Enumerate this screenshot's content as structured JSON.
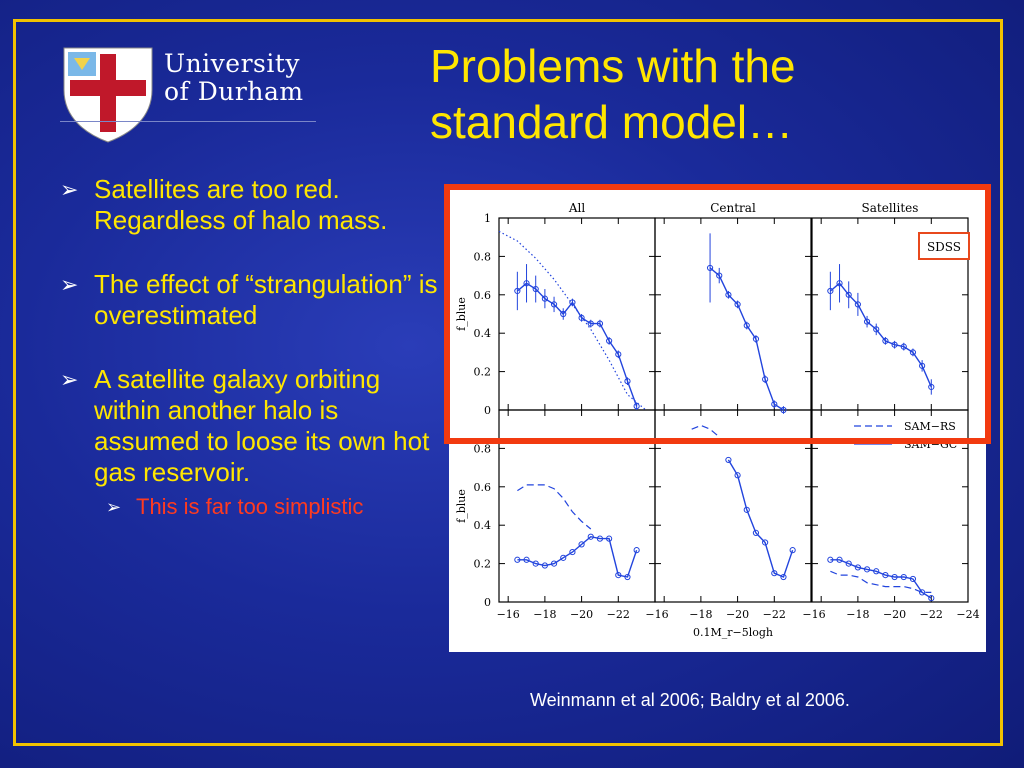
{
  "logo": {
    "line1": "University",
    "line2": "of Durham",
    "colors": {
      "shield": "#ffffff",
      "cross": "#c0182a",
      "quarter": "#7ab8e8"
    }
  },
  "title": {
    "line1": "Problems with the",
    "line2": "standard model…"
  },
  "bullets": [
    {
      "marker": "➢",
      "text": "Satellites are too red. Regardless of halo mass."
    },
    {
      "marker": "➢",
      "text": "The effect of “strangulation” is overestimated"
    },
    {
      "marker": "➢",
      "text": "A satellite galaxy orbiting within another halo is assumed to loose its own hot gas reservoir."
    }
  ],
  "sub_bullet": {
    "marker": "➢",
    "text": "This is far too simplistic"
  },
  "caption": "Weinmann et al 2006; Baldry et al 2006.",
  "colors": {
    "title": "#ffe600",
    "bullet_text": "#ffe600",
    "sub_bullet_text": "#ff3b1f",
    "frame": "#f2c200",
    "highlight": "#f23a10",
    "data_line": "#2244dd"
  },
  "chart_data": {
    "type": "line",
    "panel_titles": [
      "All",
      "Central",
      "Satellites"
    ],
    "ylabel": "f_blue",
    "xlabel": "0.1M_r−5logh",
    "x_ticks": [
      "−16",
      "−18",
      "−20",
      "−22",
      "−24"
    ],
    "y_ticks": [
      "0",
      "0.2",
      "0.4",
      "0.6",
      "0.8",
      "1"
    ],
    "xlim": [
      -15.5,
      -24
    ],
    "ylim": [
      0,
      1
    ],
    "top_legend": "SDSS",
    "bottom_legend": [
      "SAM−RS",
      "SAM−GC"
    ],
    "panels": [
      {
        "row": "top",
        "column": "All",
        "series": [
          {
            "style": "points+errorbars",
            "x": [
              -16.5,
              -17,
              -17.5,
              -18,
              -18.5,
              -19,
              -19.5,
              -20,
              -20.5,
              -21,
              -21.5,
              -22,
              -22.5,
              -23
            ],
            "y": [
              0.62,
              0.66,
              0.63,
              0.58,
              0.55,
              0.5,
              0.56,
              0.48,
              0.45,
              0.45,
              0.36,
              0.29,
              0.15,
              0.02
            ],
            "err": [
              0.1,
              0.1,
              0.07,
              0.05,
              0.04,
              0.03,
              0.02,
              0.02,
              0.02,
              0.02,
              0.02,
              0.02,
              0.02,
              0.02
            ]
          },
          {
            "style": "dotted",
            "x": [
              -15.5,
              -16.5,
              -17.5,
              -18.5,
              -19.5,
              -20.5,
              -21.5,
              -22.5,
              -23.5
            ],
            "y": [
              0.93,
              0.88,
              0.79,
              0.68,
              0.55,
              0.42,
              0.26,
              0.08,
              0.0
            ]
          }
        ]
      },
      {
        "row": "top",
        "column": "Central",
        "series": [
          {
            "style": "points+errorbars",
            "x": [
              -18.5,
              -19,
              -19.5,
              -20,
              -20.5,
              -21,
              -21.5,
              -22,
              -22.5
            ],
            "y": [
              0.74,
              0.7,
              0.6,
              0.55,
              0.44,
              0.37,
              0.16,
              0.03,
              0.0
            ],
            "err": [
              0.18,
              0.04,
              0.02,
              0.02,
              0.02,
              0.02,
              0.02,
              0.02,
              0.02
            ]
          }
        ]
      },
      {
        "row": "top",
        "column": "Satellites",
        "series": [
          {
            "style": "points+errorbars",
            "x": [
              -16.5,
              -17,
              -17.5,
              -18,
              -18.5,
              -19,
              -19.5,
              -20,
              -20.5,
              -21,
              -21.5,
              -22
            ],
            "y": [
              0.62,
              0.66,
              0.6,
              0.55,
              0.46,
              0.42,
              0.36,
              0.34,
              0.33,
              0.3,
              0.23,
              0.12
            ],
            "err": [
              0.1,
              0.1,
              0.07,
              0.06,
              0.03,
              0.03,
              0.02,
              0.02,
              0.02,
              0.02,
              0.03,
              0.04
            ]
          }
        ]
      },
      {
        "row": "bottom",
        "column": "All",
        "series": [
          {
            "style": "points",
            "x": [
              -16.5,
              -17,
              -17.5,
              -18,
              -18.5,
              -19,
              -19.5,
              -20,
              -20.5,
              -21,
              -21.5,
              -22,
              -22.5,
              -23
            ],
            "y": [
              0.22,
              0.22,
              0.2,
              0.19,
              0.2,
              0.23,
              0.26,
              0.3,
              0.34,
              0.33,
              0.33,
              0.14,
              0.13,
              0.27
            ]
          },
          {
            "style": "dashed",
            "x": [
              -16.5,
              -17,
              -17.5,
              -18,
              -18.5,
              -19,
              -19.5,
              -20,
              -20.5
            ],
            "y": [
              0.58,
              0.61,
              0.61,
              0.61,
              0.59,
              0.54,
              0.47,
              0.42,
              0.38
            ]
          }
        ]
      },
      {
        "row": "bottom",
        "column": "Central",
        "series": [
          {
            "style": "points",
            "x": [
              -19.5,
              -20,
              -20.5,
              -21,
              -21.5,
              -22,
              -22.5,
              -23
            ],
            "y": [
              0.74,
              0.66,
              0.48,
              0.36,
              0.31,
              0.15,
              0.13,
              0.27
            ]
          },
          {
            "style": "dashed",
            "x": [
              -17.5,
              -18,
              -18.5,
              -19
            ],
            "y": [
              0.9,
              0.92,
              0.9,
              0.86
            ]
          }
        ]
      },
      {
        "row": "bottom",
        "column": "Satellites",
        "series": [
          {
            "style": "points",
            "x": [
              -16.5,
              -17,
              -17.5,
              -18,
              -18.5,
              -19,
              -19.5,
              -20,
              -20.5,
              -21,
              -21.5,
              -22
            ],
            "y": [
              0.22,
              0.22,
              0.2,
              0.18,
              0.17,
              0.16,
              0.14,
              0.13,
              0.13,
              0.12,
              0.05,
              0.02
            ]
          },
          {
            "style": "dashed",
            "x": [
              -16.5,
              -17,
              -17.5,
              -18,
              -18.5,
              -19,
              -19.5,
              -20,
              -20.5,
              -21,
              -21.5,
              -22
            ],
            "y": [
              0.16,
              0.14,
              0.14,
              0.13,
              0.1,
              0.09,
              0.08,
              0.08,
              0.08,
              0.07,
              0.05,
              0.05
            ]
          }
        ]
      }
    ]
  }
}
